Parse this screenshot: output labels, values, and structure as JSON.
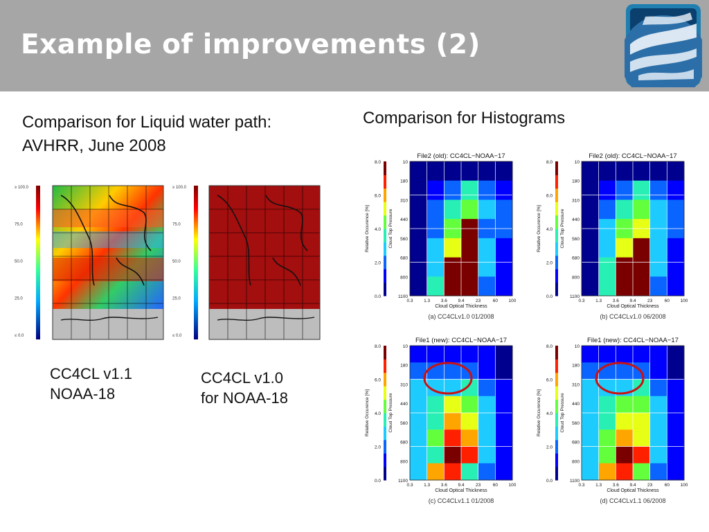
{
  "slide": {
    "title": "Example of improvements (2)",
    "left_heading_line1": "Comparison for Liquid water path:",
    "left_heading_line2": "AVHRR, June 2008",
    "right_heading": "Comparison for Histograms",
    "caption_left_line1": "CC4CL v1.1",
    "caption_left_line2": "NOAA-18",
    "caption_right_line1": "CC4CL v1.0",
    "caption_right_line2": "for NOAA-18"
  },
  "logo": {
    "icon": "earth-globe-icon",
    "frame_color": "#1e7fb0"
  },
  "maps": [
    {
      "id": "map-v11",
      "style": "mixed-colormap",
      "colorbar_ticks": [
        "≥ 100.0",
        "75.0",
        "50.0",
        "25.0",
        "≤ 0.0"
      ]
    },
    {
      "id": "map-v10",
      "style": "saturated-red",
      "colorbar_ticks": [
        "≥ 100.0",
        "75.0",
        "50.0",
        "25.0",
        "≤ 0.0"
      ]
    }
  ],
  "histograms": {
    "ylabel": "Cloud Top Pressure",
    "xlabel": "Cloud Optical Thickness",
    "colorbar_label": "Relative Occurence [%]",
    "colorbar_ticks": [
      "8.0",
      "6.0",
      "4.0",
      "2.0",
      "0.0"
    ],
    "y_ticks": [
      "10",
      "180",
      "310",
      "440",
      "560",
      "680",
      "800",
      "1100"
    ],
    "x_ticks": [
      "0.3",
      "1.3",
      "3.6",
      "9.4",
      "23",
      "60",
      "100"
    ],
    "panels": [
      {
        "title": "File2 (old): CC4CL−NOAA−17",
        "caption": "(a) CC4CLv1.0 01/2008",
        "highlight": false,
        "grid": [
          [
            0,
            0,
            0,
            0,
            0,
            0
          ],
          [
            0,
            1,
            2,
            4,
            2,
            1
          ],
          [
            0,
            2,
            4,
            5,
            3,
            2
          ],
          [
            0,
            2,
            5,
            9,
            2,
            2
          ],
          [
            0,
            3,
            6,
            9,
            3,
            1
          ],
          [
            0,
            3,
            9,
            9,
            3,
            1
          ],
          [
            0,
            4,
            9,
            9,
            2,
            1
          ]
        ]
      },
      {
        "title": "File2 (old): CC4CL−NOAA−17",
        "caption": "(b) CC4CLv1.0 06/2008",
        "highlight": false,
        "grid": [
          [
            0,
            0,
            0,
            0,
            0,
            0
          ],
          [
            0,
            1,
            2,
            4,
            2,
            1
          ],
          [
            0,
            2,
            4,
            5,
            3,
            2
          ],
          [
            0,
            3,
            5,
            6,
            3,
            2
          ],
          [
            0,
            3,
            6,
            9,
            3,
            1
          ],
          [
            0,
            4,
            9,
            9,
            3,
            1
          ],
          [
            0,
            4,
            9,
            9,
            2,
            1
          ]
        ]
      },
      {
        "title": "File1 (new): CC4CL−NOAA−17",
        "caption": "(c) CC4CLv1.1 01/2008",
        "highlight": true,
        "grid": [
          [
            1,
            1,
            1,
            1,
            1,
            0
          ],
          [
            2,
            2,
            2,
            2,
            1,
            0
          ],
          [
            3,
            3,
            3,
            4,
            2,
            1
          ],
          [
            3,
            4,
            6,
            5,
            3,
            1
          ],
          [
            3,
            4,
            7,
            6,
            3,
            1
          ],
          [
            3,
            5,
            8,
            7,
            3,
            1
          ],
          [
            3,
            4,
            9,
            8,
            3,
            1
          ],
          [
            3,
            7,
            8,
            4,
            2,
            1
          ]
        ]
      },
      {
        "title": "File1 (new): CC4CL−NOAA−17",
        "caption": "(d) CC4CLv1.1 06/2008",
        "highlight": true,
        "grid": [
          [
            1,
            1,
            1,
            1,
            1,
            0
          ],
          [
            2,
            2,
            2,
            2,
            1,
            0
          ],
          [
            3,
            3,
            3,
            4,
            2,
            1
          ],
          [
            3,
            4,
            5,
            5,
            3,
            1
          ],
          [
            3,
            4,
            6,
            6,
            3,
            1
          ],
          [
            3,
            5,
            7,
            6,
            3,
            1
          ],
          [
            3,
            5,
            9,
            8,
            3,
            1
          ],
          [
            3,
            7,
            8,
            5,
            2,
            1
          ]
        ]
      }
    ]
  },
  "colors": {
    "highlight_ring": "#cc1111",
    "header_bg": "#a6a6a6"
  }
}
